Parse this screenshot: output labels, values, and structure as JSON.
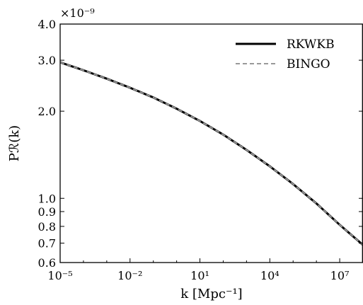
{
  "chart_data": {
    "type": "line",
    "title": "",
    "xlabel": "k [Mpc⁻¹]",
    "ylabel": "Pℛ(k)",
    "x_scale": "log",
    "y_scale": "log",
    "xlim": [
      1e-05,
      100000000.0
    ],
    "ylim": [
      6e-10,
      4e-09
    ],
    "y_multiplier_label": "×10⁻⁹",
    "x_ticks": [
      {
        "value": 1e-05,
        "label": "10⁻⁵"
      },
      {
        "value": 0.01,
        "label": "10⁻²"
      },
      {
        "value": 10.0,
        "label": "10¹"
      },
      {
        "value": 10000.0,
        "label": "10⁴"
      },
      {
        "value": 10000000.0,
        "label": "10⁷"
      }
    ],
    "y_ticks": [
      {
        "value": 6e-10,
        "label": "0.6"
      },
      {
        "value": 7e-10,
        "label": "0.7"
      },
      {
        "value": 8e-10,
        "label": "0.8"
      },
      {
        "value": 9e-10,
        "label": "0.9"
      },
      {
        "value": 1e-09,
        "label": "1.0"
      },
      {
        "value": 2e-09,
        "label": "2.0"
      },
      {
        "value": 3e-09,
        "label": "3.0"
      },
      {
        "value": 4e-09,
        "label": "4.0"
      }
    ],
    "legend_position": "top-right",
    "grid": false,
    "series": [
      {
        "name": "RKWKB",
        "color": "#000000",
        "dash": "solid",
        "x": [
          1e-05,
          0.0001,
          0.001,
          0.01,
          0.1,
          1.0,
          10.0,
          100.0,
          1000.0,
          10000.0,
          100000.0,
          1000000.0,
          10000000.0,
          100000000.0
        ],
        "y": [
          2.95e-09,
          2.77e-09,
          2.59e-09,
          2.41e-09,
          2.23e-09,
          2.04e-09,
          1.85e-09,
          1.66e-09,
          1.47e-09,
          1.29e-09,
          1.12e-09,
          9.6e-10,
          8.1e-10,
          6.9e-10
        ]
      },
      {
        "name": "BINGO",
        "color": "#999999",
        "dash": "dashed",
        "x": [
          1e-05,
          0.0001,
          0.001,
          0.01,
          0.1,
          1.0,
          10.0,
          100.0,
          1000.0,
          10000.0,
          100000.0,
          1000000.0,
          10000000.0,
          100000000.0
        ],
        "y": [
          2.95e-09,
          2.77e-09,
          2.59e-09,
          2.41e-09,
          2.23e-09,
          2.04e-09,
          1.85e-09,
          1.66e-09,
          1.47e-09,
          1.29e-09,
          1.12e-09,
          9.6e-10,
          8.1e-10,
          6.9e-10
        ]
      }
    ]
  }
}
